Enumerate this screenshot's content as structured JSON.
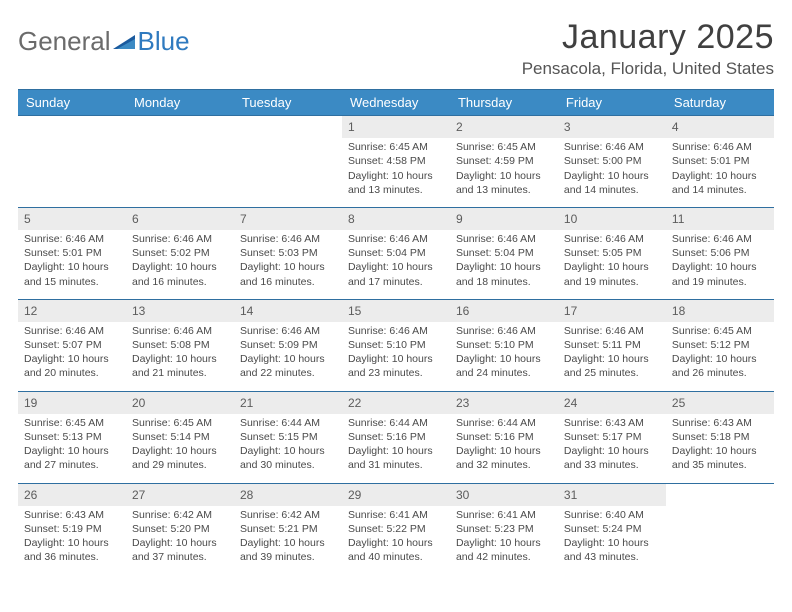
{
  "brand": {
    "word1": "General",
    "word2": "Blue"
  },
  "title": "January 2025",
  "location": "Pensacola, Florida, United States",
  "colors": {
    "header_bg": "#3b8ac4",
    "header_border": "#2f6fa0",
    "daynum_bg": "#ececec",
    "text": "#4a4a4a",
    "brand_gray": "#6b6b6b",
    "brand_blue": "#2f7abf"
  },
  "typography": {
    "title_fontsize": 34,
    "location_fontsize": 17,
    "weekday_fontsize": 13,
    "daynum_fontsize": 12,
    "body_fontsize": 10.5
  },
  "weekdays": [
    "Sunday",
    "Monday",
    "Tuesday",
    "Wednesday",
    "Thursday",
    "Friday",
    "Saturday"
  ],
  "weeks": [
    [
      {
        "n": "",
        "sr": "",
        "ss": "",
        "dl": ""
      },
      {
        "n": "",
        "sr": "",
        "ss": "",
        "dl": ""
      },
      {
        "n": "",
        "sr": "",
        "ss": "",
        "dl": ""
      },
      {
        "n": "1",
        "sr": "6:45 AM",
        "ss": "4:58 PM",
        "dl": "10 hours and 13 minutes."
      },
      {
        "n": "2",
        "sr": "6:45 AM",
        "ss": "4:59 PM",
        "dl": "10 hours and 13 minutes."
      },
      {
        "n": "3",
        "sr": "6:46 AM",
        "ss": "5:00 PM",
        "dl": "10 hours and 14 minutes."
      },
      {
        "n": "4",
        "sr": "6:46 AM",
        "ss": "5:01 PM",
        "dl": "10 hours and 14 minutes."
      }
    ],
    [
      {
        "n": "5",
        "sr": "6:46 AM",
        "ss": "5:01 PM",
        "dl": "10 hours and 15 minutes."
      },
      {
        "n": "6",
        "sr": "6:46 AM",
        "ss": "5:02 PM",
        "dl": "10 hours and 16 minutes."
      },
      {
        "n": "7",
        "sr": "6:46 AM",
        "ss": "5:03 PM",
        "dl": "10 hours and 16 minutes."
      },
      {
        "n": "8",
        "sr": "6:46 AM",
        "ss": "5:04 PM",
        "dl": "10 hours and 17 minutes."
      },
      {
        "n": "9",
        "sr": "6:46 AM",
        "ss": "5:04 PM",
        "dl": "10 hours and 18 minutes."
      },
      {
        "n": "10",
        "sr": "6:46 AM",
        "ss": "5:05 PM",
        "dl": "10 hours and 19 minutes."
      },
      {
        "n": "11",
        "sr": "6:46 AM",
        "ss": "5:06 PM",
        "dl": "10 hours and 19 minutes."
      }
    ],
    [
      {
        "n": "12",
        "sr": "6:46 AM",
        "ss": "5:07 PM",
        "dl": "10 hours and 20 minutes."
      },
      {
        "n": "13",
        "sr": "6:46 AM",
        "ss": "5:08 PM",
        "dl": "10 hours and 21 minutes."
      },
      {
        "n": "14",
        "sr": "6:46 AM",
        "ss": "5:09 PM",
        "dl": "10 hours and 22 minutes."
      },
      {
        "n": "15",
        "sr": "6:46 AM",
        "ss": "5:10 PM",
        "dl": "10 hours and 23 minutes."
      },
      {
        "n": "16",
        "sr": "6:46 AM",
        "ss": "5:10 PM",
        "dl": "10 hours and 24 minutes."
      },
      {
        "n": "17",
        "sr": "6:46 AM",
        "ss": "5:11 PM",
        "dl": "10 hours and 25 minutes."
      },
      {
        "n": "18",
        "sr": "6:45 AM",
        "ss": "5:12 PM",
        "dl": "10 hours and 26 minutes."
      }
    ],
    [
      {
        "n": "19",
        "sr": "6:45 AM",
        "ss": "5:13 PM",
        "dl": "10 hours and 27 minutes."
      },
      {
        "n": "20",
        "sr": "6:45 AM",
        "ss": "5:14 PM",
        "dl": "10 hours and 29 minutes."
      },
      {
        "n": "21",
        "sr": "6:44 AM",
        "ss": "5:15 PM",
        "dl": "10 hours and 30 minutes."
      },
      {
        "n": "22",
        "sr": "6:44 AM",
        "ss": "5:16 PM",
        "dl": "10 hours and 31 minutes."
      },
      {
        "n": "23",
        "sr": "6:44 AM",
        "ss": "5:16 PM",
        "dl": "10 hours and 32 minutes."
      },
      {
        "n": "24",
        "sr": "6:43 AM",
        "ss": "5:17 PM",
        "dl": "10 hours and 33 minutes."
      },
      {
        "n": "25",
        "sr": "6:43 AM",
        "ss": "5:18 PM",
        "dl": "10 hours and 35 minutes."
      }
    ],
    [
      {
        "n": "26",
        "sr": "6:43 AM",
        "ss": "5:19 PM",
        "dl": "10 hours and 36 minutes."
      },
      {
        "n": "27",
        "sr": "6:42 AM",
        "ss": "5:20 PM",
        "dl": "10 hours and 37 minutes."
      },
      {
        "n": "28",
        "sr": "6:42 AM",
        "ss": "5:21 PM",
        "dl": "10 hours and 39 minutes."
      },
      {
        "n": "29",
        "sr": "6:41 AM",
        "ss": "5:22 PM",
        "dl": "10 hours and 40 minutes."
      },
      {
        "n": "30",
        "sr": "6:41 AM",
        "ss": "5:23 PM",
        "dl": "10 hours and 42 minutes."
      },
      {
        "n": "31",
        "sr": "6:40 AM",
        "ss": "5:24 PM",
        "dl": "10 hours and 43 minutes."
      },
      {
        "n": "",
        "sr": "",
        "ss": "",
        "dl": ""
      }
    ]
  ],
  "labels": {
    "sunrise": "Sunrise:",
    "sunset": "Sunset:",
    "daylight": "Daylight:"
  }
}
